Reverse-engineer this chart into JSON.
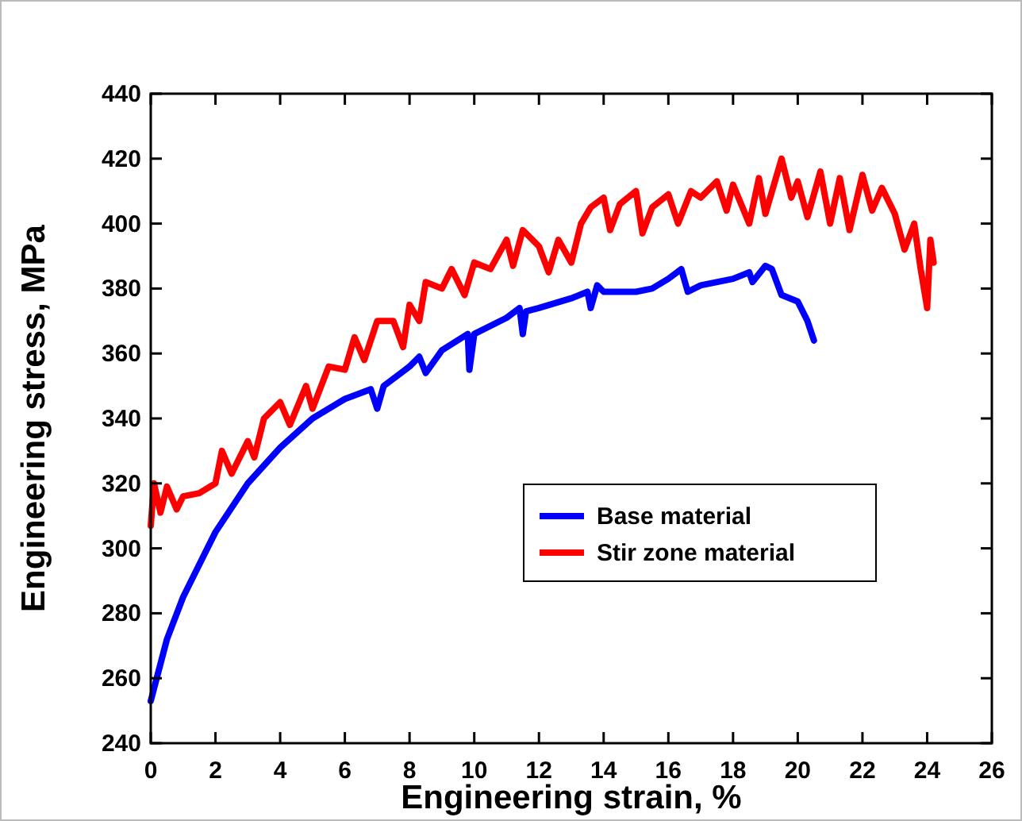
{
  "chart_data": {
    "type": "line",
    "xlabel": "Engineering strain, %",
    "ylabel": "Engineering stress, MPa",
    "xlim": [
      0,
      26
    ],
    "xticks": [
      0,
      2,
      4,
      6,
      8,
      10,
      12,
      14,
      16,
      18,
      20,
      22,
      24,
      26
    ],
    "ylim": [
      240,
      440
    ],
    "yticks": [
      240,
      260,
      280,
      300,
      320,
      340,
      360,
      380,
      400,
      420,
      440
    ],
    "grid": false,
    "legend": "right",
    "marker": "none",
    "line_style": "solid",
    "series": [
      {
        "name": "Base material",
        "color": "#0000ff",
        "x": [
          0,
          0.5,
          1,
          2,
          3,
          4,
          5,
          6,
          6.8,
          7,
          7.2,
          8,
          8.3,
          8.5,
          9,
          9.8,
          9.85,
          10,
          11,
          11.4,
          11.5,
          11.6,
          12,
          13,
          13.5,
          13.6,
          13.8,
          14,
          15,
          15.5,
          16,
          16.4,
          16.6,
          17,
          18,
          18.5,
          18.6,
          19,
          19.2,
          19.5,
          20,
          20.3,
          20.5
        ],
        "values": [
          253,
          272,
          285,
          305,
          320,
          331,
          340,
          346,
          349,
          343,
          350,
          356,
          359,
          354,
          361,
          366,
          355,
          366,
          371,
          374,
          366,
          373,
          374,
          377,
          379,
          374,
          381,
          379,
          379,
          380,
          383,
          386,
          379,
          381,
          383,
          385,
          382,
          387,
          386,
          378,
          376,
          370,
          364
        ]
      },
      {
        "name": "Stir zone material",
        "color": "#ff0000",
        "x": [
          0,
          0.1,
          0.3,
          0.5,
          0.8,
          1,
          1.5,
          2,
          2.2,
          2.5,
          3,
          3.2,
          3.5,
          4,
          4.3,
          4.8,
          5,
          5.5,
          6,
          6.3,
          6.6,
          7,
          7.5,
          7.8,
          8,
          8.3,
          8.5,
          9,
          9.3,
          9.7,
          10,
          10.5,
          11,
          11.2,
          11.5,
          12,
          12.3,
          12.6,
          13,
          13.3,
          13.6,
          14,
          14.2,
          14.5,
          15,
          15.2,
          15.5,
          16,
          16.3,
          16.7,
          17,
          17.5,
          17.8,
          18,
          18.5,
          18.8,
          19,
          19.5,
          19.8,
          20,
          20.3,
          20.7,
          21,
          21.3,
          21.6,
          22,
          22.3,
          22.6,
          23,
          23.3,
          23.6,
          23.8,
          24,
          24.1,
          24.2
        ],
        "values": [
          307,
          320,
          311,
          319,
          312,
          316,
          317,
          320,
          330,
          323,
          333,
          328,
          340,
          345,
          338,
          350,
          343,
          356,
          355,
          365,
          358,
          370,
          370,
          362,
          375,
          370,
          382,
          380,
          386,
          378,
          388,
          386,
          395,
          387,
          398,
          393,
          385,
          395,
          388,
          400,
          405,
          408,
          398,
          406,
          410,
          397,
          405,
          409,
          400,
          410,
          408,
          413,
          404,
          412,
          400,
          414,
          403,
          420,
          408,
          413,
          402,
          416,
          400,
          414,
          398,
          415,
          404,
          411,
          403,
          392,
          400,
          386,
          374,
          395,
          388
        ]
      }
    ]
  }
}
